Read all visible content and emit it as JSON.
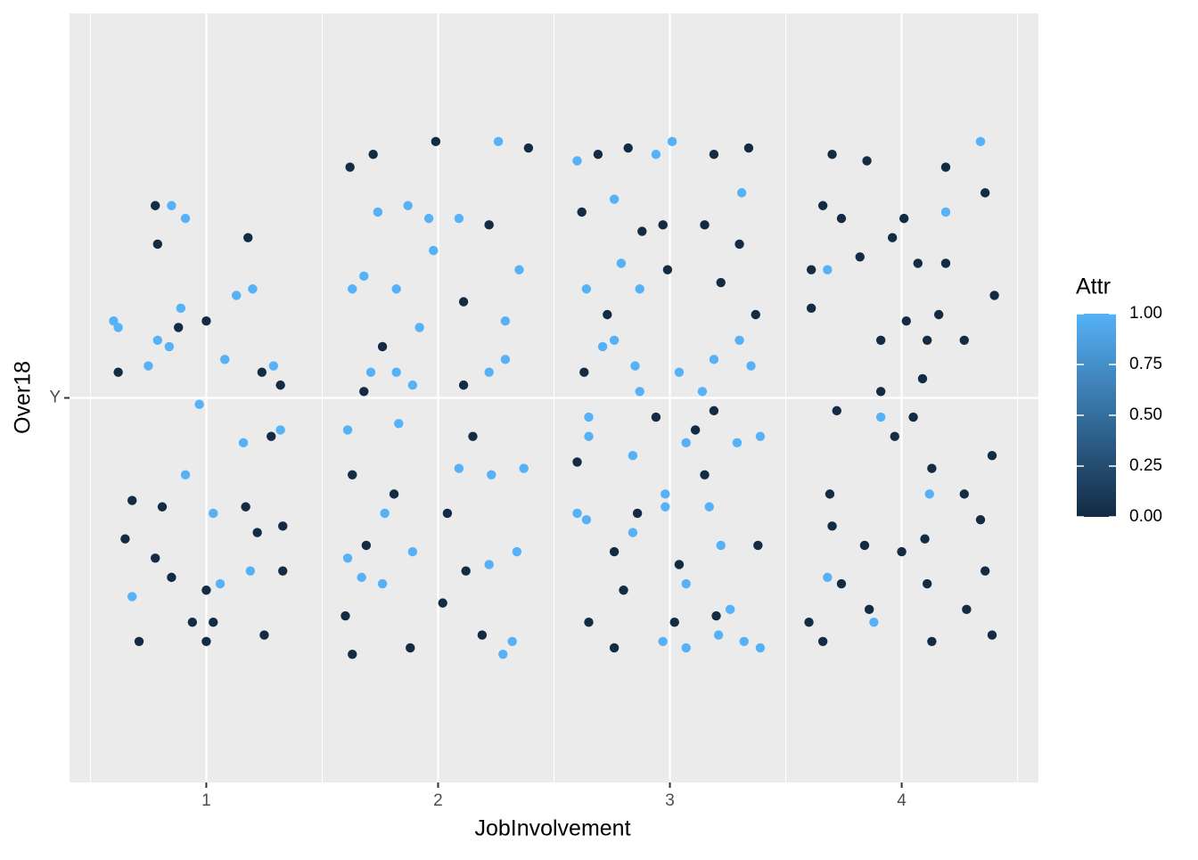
{
  "chart_data": {
    "type": "scatter",
    "x_label": "JobInvolvement",
    "y_label": "Over18",
    "xlim": [
      0.41,
      4.59
    ],
    "xticks": [
      1,
      2,
      3,
      4
    ],
    "x_minor_grid": [
      0.5,
      1.5,
      2.5,
      3.5,
      4.5
    ],
    "ylim": [
      0.4,
      1.6
    ],
    "yticks": [
      {
        "value": 1,
        "label": "Y"
      }
    ],
    "grid": true,
    "color_scale": {
      "title": "Attr",
      "low": "#132B43",
      "high": "#56B1F7",
      "limits": [
        0,
        1
      ],
      "ticks": [
        {
          "value": 0,
          "label": "0.00"
        },
        {
          "value": 0.25,
          "label": "0.25"
        },
        {
          "value": 0.5,
          "label": "0.50"
        },
        {
          "value": 0.75,
          "label": "0.75"
        },
        {
          "value": 1,
          "label": "1.00"
        }
      ]
    },
    "points": [
      {
        "x": 0.78,
        "y": 1.3,
        "attr": 0
      },
      {
        "x": 0.85,
        "y": 1.3,
        "attr": 1
      },
      {
        "x": 0.91,
        "y": 1.28,
        "attr": 1
      },
      {
        "x": 0.79,
        "y": 1.24,
        "attr": 0
      },
      {
        "x": 1.18,
        "y": 1.25,
        "attr": 0
      },
      {
        "x": 1.13,
        "y": 1.16,
        "attr": 1
      },
      {
        "x": 1.2,
        "y": 1.17,
        "attr": 1
      },
      {
        "x": 0.89,
        "y": 1.14,
        "attr": 1
      },
      {
        "x": 0.6,
        "y": 1.12,
        "attr": 1
      },
      {
        "x": 0.62,
        "y": 1.11,
        "attr": 1
      },
      {
        "x": 1.0,
        "y": 1.12,
        "attr": 0
      },
      {
        "x": 0.88,
        "y": 1.11,
        "attr": 0
      },
      {
        "x": 0.79,
        "y": 1.09,
        "attr": 1
      },
      {
        "x": 0.84,
        "y": 1.08,
        "attr": 1
      },
      {
        "x": 0.75,
        "y": 1.05,
        "attr": 1
      },
      {
        "x": 0.62,
        "y": 1.04,
        "attr": 0
      },
      {
        "x": 1.08,
        "y": 1.06,
        "attr": 1
      },
      {
        "x": 1.29,
        "y": 1.05,
        "attr": 1
      },
      {
        "x": 1.24,
        "y": 1.04,
        "attr": 0
      },
      {
        "x": 1.32,
        "y": 1.02,
        "attr": 0
      },
      {
        "x": 0.97,
        "y": 0.99,
        "attr": 1
      },
      {
        "x": 1.32,
        "y": 0.95,
        "attr": 1
      },
      {
        "x": 1.16,
        "y": 0.93,
        "attr": 1
      },
      {
        "x": 1.28,
        "y": 0.94,
        "attr": 0
      },
      {
        "x": 0.91,
        "y": 0.88,
        "attr": 1
      },
      {
        "x": 0.68,
        "y": 0.84,
        "attr": 0
      },
      {
        "x": 0.81,
        "y": 0.83,
        "attr": 0
      },
      {
        "x": 1.03,
        "y": 0.82,
        "attr": 1
      },
      {
        "x": 1.17,
        "y": 0.83,
        "attr": 0
      },
      {
        "x": 0.65,
        "y": 0.78,
        "attr": 0
      },
      {
        "x": 1.22,
        "y": 0.79,
        "attr": 0
      },
      {
        "x": 1.33,
        "y": 0.8,
        "attr": 0
      },
      {
        "x": 0.78,
        "y": 0.75,
        "attr": 0
      },
      {
        "x": 1.19,
        "y": 0.73,
        "attr": 1
      },
      {
        "x": 1.33,
        "y": 0.73,
        "attr": 0
      },
      {
        "x": 0.85,
        "y": 0.72,
        "attr": 0
      },
      {
        "x": 1.06,
        "y": 0.71,
        "attr": 1
      },
      {
        "x": 1.0,
        "y": 0.7,
        "attr": 0
      },
      {
        "x": 0.68,
        "y": 0.69,
        "attr": 1
      },
      {
        "x": 0.94,
        "y": 0.65,
        "attr": 0
      },
      {
        "x": 1.03,
        "y": 0.65,
        "attr": 0
      },
      {
        "x": 1.25,
        "y": 0.63,
        "attr": 0
      },
      {
        "x": 0.71,
        "y": 0.62,
        "attr": 0
      },
      {
        "x": 1.0,
        "y": 0.62,
        "attr": 0
      },
      {
        "x": 1.62,
        "y": 1.36,
        "attr": 0
      },
      {
        "x": 1.72,
        "y": 1.38,
        "attr": 0
      },
      {
        "x": 1.99,
        "y": 1.4,
        "attr": 0
      },
      {
        "x": 2.26,
        "y": 1.4,
        "attr": 1
      },
      {
        "x": 2.39,
        "y": 1.39,
        "attr": 0
      },
      {
        "x": 1.74,
        "y": 1.29,
        "attr": 1
      },
      {
        "x": 1.87,
        "y": 1.3,
        "attr": 1
      },
      {
        "x": 1.96,
        "y": 1.28,
        "attr": 1
      },
      {
        "x": 2.09,
        "y": 1.28,
        "attr": 1
      },
      {
        "x": 1.98,
        "y": 1.23,
        "attr": 1
      },
      {
        "x": 2.22,
        "y": 1.27,
        "attr": 0
      },
      {
        "x": 2.35,
        "y": 1.2,
        "attr": 1
      },
      {
        "x": 1.68,
        "y": 1.19,
        "attr": 1
      },
      {
        "x": 1.63,
        "y": 1.17,
        "attr": 1
      },
      {
        "x": 1.82,
        "y": 1.17,
        "attr": 1
      },
      {
        "x": 2.11,
        "y": 1.15,
        "attr": 0
      },
      {
        "x": 2.29,
        "y": 1.12,
        "attr": 1
      },
      {
        "x": 1.92,
        "y": 1.11,
        "attr": 1
      },
      {
        "x": 1.76,
        "y": 1.08,
        "attr": 0
      },
      {
        "x": 2.22,
        "y": 1.04,
        "attr": 1
      },
      {
        "x": 2.29,
        "y": 1.06,
        "attr": 1
      },
      {
        "x": 1.71,
        "y": 1.04,
        "attr": 1
      },
      {
        "x": 1.82,
        "y": 1.04,
        "attr": 1
      },
      {
        "x": 1.89,
        "y": 1.02,
        "attr": 1
      },
      {
        "x": 1.68,
        "y": 1.01,
        "attr": 0
      },
      {
        "x": 2.11,
        "y": 1.02,
        "attr": 0
      },
      {
        "x": 1.61,
        "y": 0.95,
        "attr": 1
      },
      {
        "x": 1.83,
        "y": 0.96,
        "attr": 1
      },
      {
        "x": 2.15,
        "y": 0.94,
        "attr": 0
      },
      {
        "x": 2.09,
        "y": 0.89,
        "attr": 1
      },
      {
        "x": 2.23,
        "y": 0.88,
        "attr": 1
      },
      {
        "x": 2.37,
        "y": 0.89,
        "attr": 1
      },
      {
        "x": 1.63,
        "y": 0.88,
        "attr": 0
      },
      {
        "x": 1.81,
        "y": 0.85,
        "attr": 0
      },
      {
        "x": 1.77,
        "y": 0.82,
        "attr": 1
      },
      {
        "x": 2.04,
        "y": 0.82,
        "attr": 0
      },
      {
        "x": 1.69,
        "y": 0.77,
        "attr": 0
      },
      {
        "x": 1.89,
        "y": 0.76,
        "attr": 1
      },
      {
        "x": 1.61,
        "y": 0.75,
        "attr": 1
      },
      {
        "x": 2.22,
        "y": 0.74,
        "attr": 1
      },
      {
        "x": 2.34,
        "y": 0.76,
        "attr": 1
      },
      {
        "x": 1.67,
        "y": 0.72,
        "attr": 1
      },
      {
        "x": 1.76,
        "y": 0.71,
        "attr": 1
      },
      {
        "x": 2.12,
        "y": 0.73,
        "attr": 0
      },
      {
        "x": 1.6,
        "y": 0.66,
        "attr": 0
      },
      {
        "x": 2.02,
        "y": 0.68,
        "attr": 0
      },
      {
        "x": 2.19,
        "y": 0.63,
        "attr": 0
      },
      {
        "x": 2.32,
        "y": 0.62,
        "attr": 1
      },
      {
        "x": 2.28,
        "y": 0.6,
        "attr": 1
      },
      {
        "x": 1.63,
        "y": 0.6,
        "attr": 0
      },
      {
        "x": 1.88,
        "y": 0.61,
        "attr": 0
      },
      {
        "x": 2.6,
        "y": 1.37,
        "attr": 1
      },
      {
        "x": 2.69,
        "y": 1.38,
        "attr": 0
      },
      {
        "x": 2.82,
        "y": 1.39,
        "attr": 0
      },
      {
        "x": 3.01,
        "y": 1.4,
        "attr": 1
      },
      {
        "x": 2.94,
        "y": 1.38,
        "attr": 1
      },
      {
        "x": 3.19,
        "y": 1.38,
        "attr": 0
      },
      {
        "x": 3.34,
        "y": 1.39,
        "attr": 0
      },
      {
        "x": 3.31,
        "y": 1.32,
        "attr": 1
      },
      {
        "x": 2.76,
        "y": 1.31,
        "attr": 1
      },
      {
        "x": 2.62,
        "y": 1.29,
        "attr": 0
      },
      {
        "x": 2.97,
        "y": 1.27,
        "attr": 0
      },
      {
        "x": 3.15,
        "y": 1.27,
        "attr": 0
      },
      {
        "x": 3.3,
        "y": 1.24,
        "attr": 0
      },
      {
        "x": 2.79,
        "y": 1.21,
        "attr": 1
      },
      {
        "x": 2.64,
        "y": 1.17,
        "attr": 1
      },
      {
        "x": 2.87,
        "y": 1.17,
        "attr": 1
      },
      {
        "x": 2.99,
        "y": 1.2,
        "attr": 0
      },
      {
        "x": 3.22,
        "y": 1.18,
        "attr": 0
      },
      {
        "x": 3.37,
        "y": 1.13,
        "attr": 0
      },
      {
        "x": 2.76,
        "y": 1.09,
        "attr": 1
      },
      {
        "x": 2.71,
        "y": 1.08,
        "attr": 1
      },
      {
        "x": 2.85,
        "y": 1.05,
        "attr": 1
      },
      {
        "x": 3.04,
        "y": 1.04,
        "attr": 1
      },
      {
        "x": 3.19,
        "y": 1.06,
        "attr": 1
      },
      {
        "x": 3.35,
        "y": 1.05,
        "attr": 1
      },
      {
        "x": 3.3,
        "y": 1.09,
        "attr": 1
      },
      {
        "x": 2.63,
        "y": 1.04,
        "attr": 0
      },
      {
        "x": 2.87,
        "y": 1.01,
        "attr": 1
      },
      {
        "x": 3.14,
        "y": 1.01,
        "attr": 1
      },
      {
        "x": 2.94,
        "y": 0.97,
        "attr": 0
      },
      {
        "x": 2.65,
        "y": 0.97,
        "attr": 1
      },
      {
        "x": 2.65,
        "y": 0.94,
        "attr": 1
      },
      {
        "x": 3.07,
        "y": 0.93,
        "attr": 1
      },
      {
        "x": 3.29,
        "y": 0.93,
        "attr": 1
      },
      {
        "x": 3.39,
        "y": 0.94,
        "attr": 1
      },
      {
        "x": 2.84,
        "y": 0.91,
        "attr": 1
      },
      {
        "x": 2.6,
        "y": 0.9,
        "attr": 0
      },
      {
        "x": 3.15,
        "y": 0.88,
        "attr": 0
      },
      {
        "x": 2.98,
        "y": 0.85,
        "attr": 1
      },
      {
        "x": 3.17,
        "y": 0.83,
        "attr": 1
      },
      {
        "x": 2.98,
        "y": 0.83,
        "attr": 1
      },
      {
        "x": 2.6,
        "y": 0.82,
        "attr": 1
      },
      {
        "x": 2.64,
        "y": 0.81,
        "attr": 1
      },
      {
        "x": 2.86,
        "y": 0.82,
        "attr": 0
      },
      {
        "x": 2.84,
        "y": 0.79,
        "attr": 1
      },
      {
        "x": 3.22,
        "y": 0.77,
        "attr": 1
      },
      {
        "x": 3.04,
        "y": 0.74,
        "attr": 0
      },
      {
        "x": 3.38,
        "y": 0.77,
        "attr": 0
      },
      {
        "x": 3.07,
        "y": 0.71,
        "attr": 1
      },
      {
        "x": 2.8,
        "y": 0.7,
        "attr": 0
      },
      {
        "x": 3.26,
        "y": 0.67,
        "attr": 1
      },
      {
        "x": 2.65,
        "y": 0.65,
        "attr": 0
      },
      {
        "x": 2.97,
        "y": 0.62,
        "attr": 1
      },
      {
        "x": 3.07,
        "y": 0.61,
        "attr": 1
      },
      {
        "x": 3.21,
        "y": 0.63,
        "attr": 1
      },
      {
        "x": 3.39,
        "y": 0.61,
        "attr": 1
      },
      {
        "x": 3.32,
        "y": 0.62,
        "attr": 1
      },
      {
        "x": 2.76,
        "y": 0.61,
        "attr": 0
      },
      {
        "x": 3.2,
        "y": 0.66,
        "attr": 0
      },
      {
        "x": 3.02,
        "y": 0.65,
        "attr": 0
      },
      {
        "x": 2.76,
        "y": 0.76,
        "attr": 0
      },
      {
        "x": 3.11,
        "y": 0.95,
        "attr": 0
      },
      {
        "x": 3.19,
        "y": 0.98,
        "attr": 0
      },
      {
        "x": 2.88,
        "y": 1.26,
        "attr": 0
      },
      {
        "x": 2.73,
        "y": 1.13,
        "attr": 0
      },
      {
        "x": 3.7,
        "y": 1.38,
        "attr": 0
      },
      {
        "x": 3.85,
        "y": 1.37,
        "attr": 0
      },
      {
        "x": 4.19,
        "y": 1.36,
        "attr": 0
      },
      {
        "x": 4.34,
        "y": 1.4,
        "attr": 1
      },
      {
        "x": 4.36,
        "y": 1.32,
        "attr": 0
      },
      {
        "x": 4.19,
        "y": 1.29,
        "attr": 1
      },
      {
        "x": 3.66,
        "y": 1.3,
        "attr": 0
      },
      {
        "x": 3.74,
        "y": 1.28,
        "attr": 0
      },
      {
        "x": 4.01,
        "y": 1.28,
        "attr": 0
      },
      {
        "x": 3.96,
        "y": 1.25,
        "attr": 0
      },
      {
        "x": 3.82,
        "y": 1.22,
        "attr": 0
      },
      {
        "x": 3.61,
        "y": 1.2,
        "attr": 0
      },
      {
        "x": 3.68,
        "y": 1.2,
        "attr": 1
      },
      {
        "x": 4.07,
        "y": 1.21,
        "attr": 0
      },
      {
        "x": 4.19,
        "y": 1.21,
        "attr": 0
      },
      {
        "x": 3.61,
        "y": 1.14,
        "attr": 0
      },
      {
        "x": 4.16,
        "y": 1.13,
        "attr": 0
      },
      {
        "x": 4.4,
        "y": 1.16,
        "attr": 0
      },
      {
        "x": 4.02,
        "y": 1.12,
        "attr": 0
      },
      {
        "x": 3.91,
        "y": 1.09,
        "attr": 0
      },
      {
        "x": 4.27,
        "y": 1.09,
        "attr": 0
      },
      {
        "x": 4.11,
        "y": 1.09,
        "attr": 0
      },
      {
        "x": 4.09,
        "y": 1.03,
        "attr": 0
      },
      {
        "x": 3.91,
        "y": 1.01,
        "attr": 0
      },
      {
        "x": 3.72,
        "y": 0.98,
        "attr": 0
      },
      {
        "x": 3.91,
        "y": 0.97,
        "attr": 1
      },
      {
        "x": 3.97,
        "y": 0.94,
        "attr": 0
      },
      {
        "x": 4.05,
        "y": 0.97,
        "attr": 0
      },
      {
        "x": 4.39,
        "y": 0.91,
        "attr": 0
      },
      {
        "x": 4.13,
        "y": 0.89,
        "attr": 0
      },
      {
        "x": 4.12,
        "y": 0.85,
        "attr": 1
      },
      {
        "x": 4.27,
        "y": 0.85,
        "attr": 0
      },
      {
        "x": 3.69,
        "y": 0.85,
        "attr": 0
      },
      {
        "x": 3.7,
        "y": 0.8,
        "attr": 0
      },
      {
        "x": 4.34,
        "y": 0.81,
        "attr": 0
      },
      {
        "x": 4.1,
        "y": 0.78,
        "attr": 0
      },
      {
        "x": 3.84,
        "y": 0.77,
        "attr": 0
      },
      {
        "x": 4.0,
        "y": 0.76,
        "attr": 0
      },
      {
        "x": 3.68,
        "y": 0.72,
        "attr": 1
      },
      {
        "x": 3.74,
        "y": 0.71,
        "attr": 0
      },
      {
        "x": 4.36,
        "y": 0.73,
        "attr": 0
      },
      {
        "x": 4.11,
        "y": 0.71,
        "attr": 0
      },
      {
        "x": 3.86,
        "y": 0.67,
        "attr": 0
      },
      {
        "x": 3.88,
        "y": 0.65,
        "attr": 1
      },
      {
        "x": 3.6,
        "y": 0.65,
        "attr": 0
      },
      {
        "x": 4.28,
        "y": 0.67,
        "attr": 0
      },
      {
        "x": 4.13,
        "y": 0.62,
        "attr": 0
      },
      {
        "x": 3.66,
        "y": 0.62,
        "attr": 0
      },
      {
        "x": 4.39,
        "y": 0.63,
        "attr": 0
      }
    ]
  }
}
